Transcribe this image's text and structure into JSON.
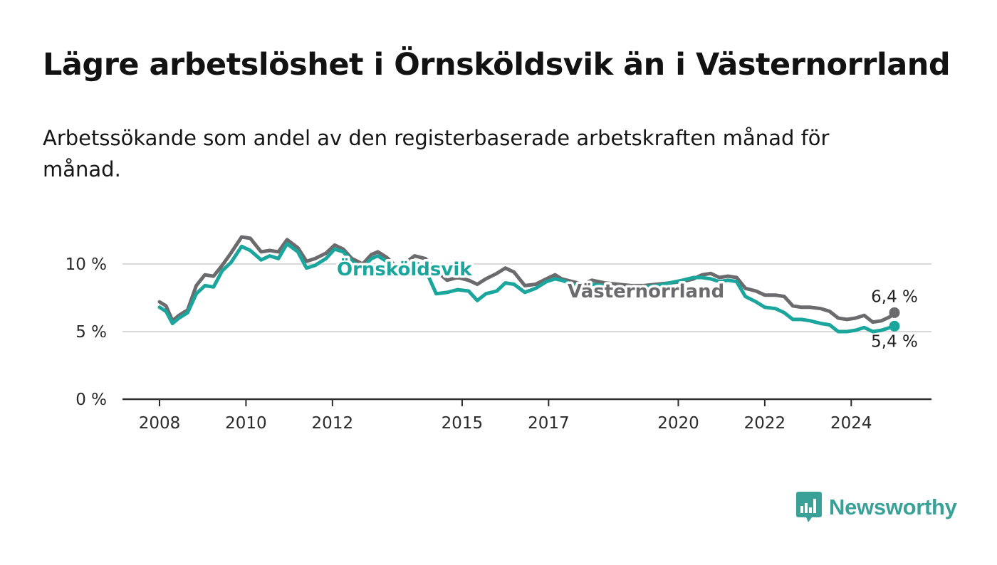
{
  "title": "Lägre arbetslöshet i Örnsköldsvik än i Västernorrland",
  "subtitle": "Arbetssökande som andel av den registerbaserade arbetskraften månad för månad.",
  "brand": {
    "name": "Newsworthy",
    "icon": "bar-chart-speech-bubble-icon",
    "color": "#3aa198"
  },
  "chart_data": {
    "type": "line",
    "title": "Lägre arbetslöshet i Örnsköldsvik än i Västernorrland",
    "subtitle": "Arbetssökande som andel av den registerbaserade arbetskraften månad för månad.",
    "xlabel": "",
    "ylabel": "",
    "x_ticks": [
      2008,
      2010,
      2012,
      2015,
      2017,
      2020,
      2022,
      2024
    ],
    "y_ticks": [
      {
        "value": 0,
        "label": "0 %"
      },
      {
        "value": 5,
        "label": "5 %"
      },
      {
        "value": 10,
        "label": "10 %"
      }
    ],
    "ylim": [
      0,
      13.5
    ],
    "xlim": [
      2007.2,
      2026.0
    ],
    "grid": true,
    "legend": "inline labels",
    "series": [
      {
        "name": "Västernorrland",
        "color": "#6b6b6d",
        "end_label": "6,4 %",
        "points": [
          [
            2008.0,
            7.2
          ],
          [
            2008.15,
            6.9
          ],
          [
            2008.3,
            5.8
          ],
          [
            2008.45,
            6.2
          ],
          [
            2008.65,
            6.6
          ],
          [
            2008.85,
            8.4
          ],
          [
            2009.05,
            9.2
          ],
          [
            2009.25,
            9.1
          ],
          [
            2009.45,
            9.9
          ],
          [
            2009.65,
            10.8
          ],
          [
            2009.9,
            12.0
          ],
          [
            2010.1,
            11.9
          ],
          [
            2010.35,
            10.9
          ],
          [
            2010.55,
            11.0
          ],
          [
            2010.75,
            10.9
          ],
          [
            2010.95,
            11.8
          ],
          [
            2011.2,
            11.2
          ],
          [
            2011.4,
            10.2
          ],
          [
            2011.6,
            10.4
          ],
          [
            2011.85,
            10.8
          ],
          [
            2012.05,
            11.4
          ],
          [
            2012.25,
            11.1
          ],
          [
            2012.45,
            10.4
          ],
          [
            2012.7,
            10.0
          ],
          [
            2012.9,
            10.7
          ],
          [
            2013.05,
            10.9
          ],
          [
            2013.25,
            10.5
          ],
          [
            2013.45,
            9.9
          ],
          [
            2013.65,
            10.0
          ],
          [
            2013.9,
            10.6
          ],
          [
            2014.15,
            10.4
          ],
          [
            2014.4,
            9.5
          ],
          [
            2014.65,
            8.8
          ],
          [
            2014.9,
            9.0
          ],
          [
            2015.15,
            8.8
          ],
          [
            2015.35,
            8.5
          ],
          [
            2015.55,
            8.9
          ],
          [
            2015.8,
            9.3
          ],
          [
            2016.0,
            9.7
          ],
          [
            2016.2,
            9.4
          ],
          [
            2016.45,
            8.4
          ],
          [
            2016.7,
            8.5
          ],
          [
            2016.95,
            8.9
          ],
          [
            2017.15,
            9.2
          ],
          [
            2017.3,
            8.9
          ],
          [
            2017.55,
            8.7
          ],
          [
            2017.8,
            8.5
          ],
          [
            2018.0,
            8.8
          ],
          [
            2018.3,
            8.6
          ],
          [
            2018.6,
            8.5
          ],
          [
            2018.9,
            8.4
          ],
          [
            2019.2,
            8.4
          ],
          [
            2019.5,
            8.5
          ],
          [
            2019.8,
            8.6
          ],
          [
            2020.1,
            8.7
          ],
          [
            2020.35,
            8.9
          ],
          [
            2020.55,
            9.2
          ],
          [
            2020.75,
            9.3
          ],
          [
            2020.95,
            9.0
          ],
          [
            2021.15,
            9.1
          ],
          [
            2021.35,
            9.0
          ],
          [
            2021.55,
            8.2
          ],
          [
            2021.8,
            8.0
          ],
          [
            2022.0,
            7.7
          ],
          [
            2022.25,
            7.7
          ],
          [
            2022.45,
            7.6
          ],
          [
            2022.65,
            6.9
          ],
          [
            2022.85,
            6.8
          ],
          [
            2023.05,
            6.8
          ],
          [
            2023.3,
            6.7
          ],
          [
            2023.5,
            6.5
          ],
          [
            2023.7,
            6.0
          ],
          [
            2023.9,
            5.9
          ],
          [
            2024.1,
            6.0
          ],
          [
            2024.3,
            6.2
          ],
          [
            2024.5,
            5.7
          ],
          [
            2024.7,
            5.8
          ],
          [
            2024.9,
            6.1
          ],
          [
            2025.0,
            6.4
          ]
        ]
      },
      {
        "name": "Örnsköldsvik",
        "color": "#1aa69c",
        "end_label": "5,4 %",
        "points": [
          [
            2008.0,
            6.8
          ],
          [
            2008.15,
            6.5
          ],
          [
            2008.3,
            5.6
          ],
          [
            2008.45,
            6.0
          ],
          [
            2008.65,
            6.4
          ],
          [
            2008.85,
            7.8
          ],
          [
            2009.05,
            8.4
          ],
          [
            2009.25,
            8.3
          ],
          [
            2009.45,
            9.5
          ],
          [
            2009.65,
            10.1
          ],
          [
            2009.9,
            11.3
          ],
          [
            2010.1,
            11.0
          ],
          [
            2010.35,
            10.3
          ],
          [
            2010.55,
            10.6
          ],
          [
            2010.75,
            10.4
          ],
          [
            2010.95,
            11.5
          ],
          [
            2011.2,
            10.9
          ],
          [
            2011.4,
            9.7
          ],
          [
            2011.6,
            9.9
          ],
          [
            2011.85,
            10.4
          ],
          [
            2012.05,
            11.1
          ],
          [
            2012.25,
            10.9
          ],
          [
            2012.45,
            10.2
          ],
          [
            2012.7,
            9.7
          ],
          [
            2012.9,
            10.4
          ],
          [
            2013.05,
            10.6
          ],
          [
            2013.25,
            10.2
          ],
          [
            2013.45,
            9.2
          ],
          [
            2013.65,
            9.4
          ],
          [
            2013.9,
            10.2
          ],
          [
            2014.15,
            9.6
          ],
          [
            2014.4,
            7.8
          ],
          [
            2014.65,
            7.9
          ],
          [
            2014.9,
            8.1
          ],
          [
            2015.15,
            8.0
          ],
          [
            2015.35,
            7.3
          ],
          [
            2015.55,
            7.8
          ],
          [
            2015.8,
            8.0
          ],
          [
            2016.0,
            8.6
          ],
          [
            2016.2,
            8.5
          ],
          [
            2016.45,
            7.9
          ],
          [
            2016.7,
            8.2
          ],
          [
            2016.95,
            8.7
          ],
          [
            2017.15,
            8.9
          ],
          [
            2017.3,
            8.8
          ],
          [
            2017.55,
            8.5
          ],
          [
            2017.8,
            8.3
          ],
          [
            2018.0,
            8.5
          ],
          [
            2018.3,
            8.4
          ],
          [
            2018.6,
            8.2
          ],
          [
            2018.9,
            8.2
          ],
          [
            2019.2,
            8.3
          ],
          [
            2019.5,
            8.4
          ],
          [
            2019.8,
            8.6
          ],
          [
            2020.1,
            8.8
          ],
          [
            2020.35,
            9.0
          ],
          [
            2020.55,
            9.0
          ],
          [
            2020.75,
            8.9
          ],
          [
            2020.95,
            8.7
          ],
          [
            2021.15,
            8.8
          ],
          [
            2021.35,
            8.7
          ],
          [
            2021.55,
            7.6
          ],
          [
            2021.8,
            7.2
          ],
          [
            2022.0,
            6.8
          ],
          [
            2022.25,
            6.7
          ],
          [
            2022.45,
            6.4
          ],
          [
            2022.65,
            5.9
          ],
          [
            2022.85,
            5.9
          ],
          [
            2023.05,
            5.8
          ],
          [
            2023.3,
            5.6
          ],
          [
            2023.5,
            5.5
          ],
          [
            2023.7,
            5.0
          ],
          [
            2023.9,
            5.0
          ],
          [
            2024.1,
            5.1
          ],
          [
            2024.3,
            5.3
          ],
          [
            2024.5,
            5.0
          ],
          [
            2024.7,
            5.1
          ],
          [
            2024.9,
            5.3
          ],
          [
            2025.0,
            5.4
          ]
        ]
      }
    ]
  }
}
